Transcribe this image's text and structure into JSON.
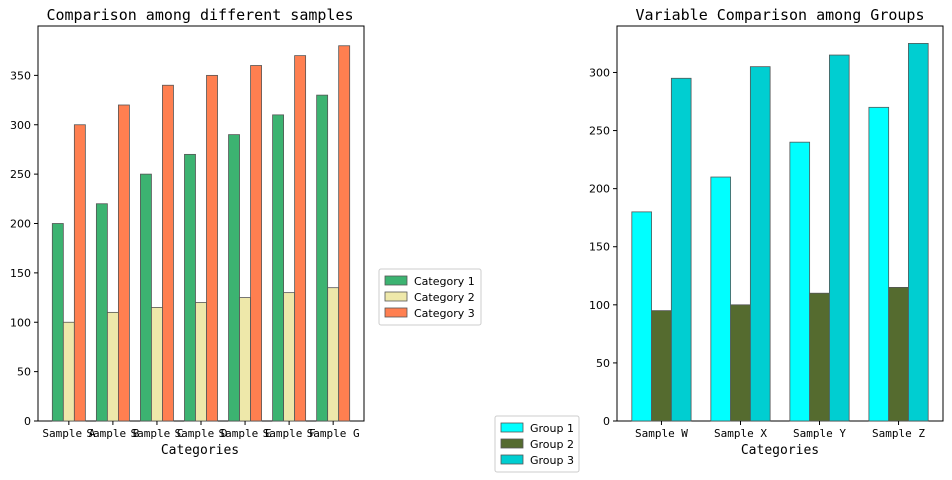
{
  "chart_data": [
    {
      "type": "bar",
      "title": "Comparison among different samples",
      "xlabel": "Categories",
      "ylabel": "",
      "categories": [
        "Sample A",
        "Sample B",
        "Sample C",
        "Sample D",
        "Sample E",
        "Sample F",
        "Sample G"
      ],
      "series": [
        {
          "name": "Category 1",
          "color": "#3cb371",
          "values": [
            200,
            220,
            250,
            270,
            290,
            310,
            330
          ]
        },
        {
          "name": "Category 2",
          "color": "#eee8aa",
          "values": [
            100,
            110,
            115,
            120,
            125,
            130,
            135
          ]
        },
        {
          "name": "Category 3",
          "color": "#ff7f50",
          "values": [
            300,
            320,
            340,
            350,
            360,
            370,
            380
          ]
        }
      ],
      "ylim": [
        0,
        400
      ],
      "yticks": [
        0,
        50,
        100,
        150,
        200,
        250,
        300,
        350
      ],
      "legend_position": "right"
    },
    {
      "type": "bar",
      "title": "Variable Comparison among Groups",
      "xlabel": "Categories",
      "ylabel": "",
      "categories": [
        "Sample W",
        "Sample X",
        "Sample Y",
        "Sample Z"
      ],
      "series": [
        {
          "name": "Group 1",
          "color": "#00ffff",
          "values": [
            180,
            210,
            240,
            270
          ]
        },
        {
          "name": "Group 2",
          "color": "#556b2f",
          "values": [
            95,
            100,
            110,
            115
          ]
        },
        {
          "name": "Group 3",
          "color": "#00ced1",
          "values": [
            295,
            305,
            315,
            325
          ]
        }
      ],
      "ylim": [
        0,
        340
      ],
      "yticks": [
        0,
        50,
        100,
        150,
        200,
        250,
        300
      ],
      "legend_position": "lower-left outside"
    }
  ]
}
